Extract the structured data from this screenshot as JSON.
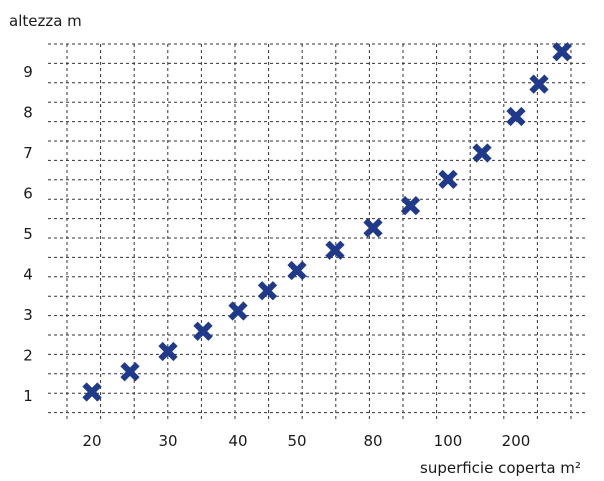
{
  "chart_data": {
    "type": "scatter",
    "title": "",
    "ylabel": "altezza m",
    "xlabel": "superficie coperta m²",
    "x_ticks": [
      "20",
      "30",
      "40",
      "50",
      "80",
      "100",
      "200"
    ],
    "y_ticks": [
      "1",
      "2",
      "3",
      "4",
      "5",
      "6",
      "7",
      "8",
      "9"
    ],
    "ylim": [
      0.55,
      9.4
    ],
    "x_scale": "categorical-like (non-linear, as printed)",
    "grid": true,
    "marker": "x",
    "marker_color": "#1f3a8a",
    "points": [
      {
        "x": 20,
        "y": 1.1
      },
      {
        "x": 25,
        "y": 1.6
      },
      {
        "x": 30,
        "y": 2.1
      },
      {
        "x": 35,
        "y": 2.6
      },
      {
        "x": 40,
        "y": 3.1
      },
      {
        "x": 45,
        "y": 3.6
      },
      {
        "x": 50,
        "y": 4.1
      },
      {
        "x": 65,
        "y": 4.6
      },
      {
        "x": 80,
        "y": 5.15
      },
      {
        "x": 90,
        "y": 5.7
      },
      {
        "x": 100,
        "y": 6.35
      },
      {
        "x": 150,
        "y": 7.0
      },
      {
        "x": 200,
        "y": 7.9
      },
      {
        "x": 230,
        "y": 8.7
      },
      {
        "x": 260,
        "y": 9.5
      }
    ]
  }
}
